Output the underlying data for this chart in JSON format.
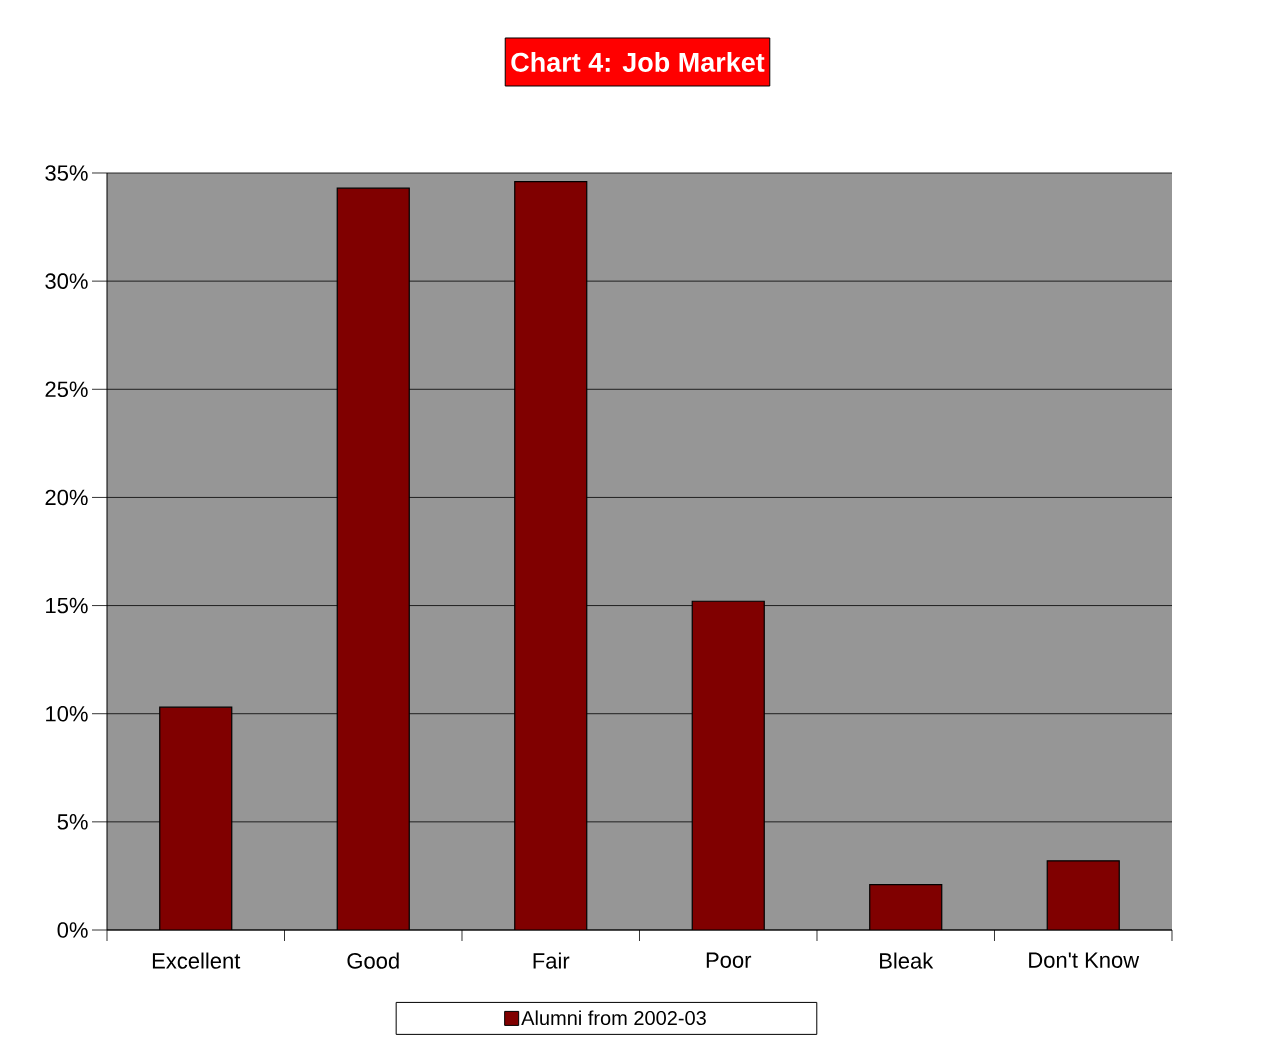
{
  "chart_data": {
    "type": "bar",
    "title": "Chart 4:  Job Market",
    "categories": [
      "Excellent",
      "Good",
      "Fair",
      "Poor",
      "Bleak",
      "Don't Know"
    ],
    "series": [
      {
        "name": "Alumni from 2002-03",
        "color": "#800000",
        "values": [
          10.3,
          34.3,
          34.6,
          15.2,
          2.1,
          3.2
        ]
      }
    ],
    "ylim": [
      0,
      35
    ],
    "yticks": [
      {
        "value": 0,
        "label": "0%"
      },
      {
        "value": 5,
        "label": "5%"
      },
      {
        "value": 10,
        "label": "10%"
      },
      {
        "value": 15,
        "label": "15%"
      },
      {
        "value": 20,
        "label": "20%"
      },
      {
        "value": 25,
        "label": "25%"
      },
      {
        "value": 30,
        "label": "30%"
      },
      {
        "value": 35,
        "label": "35%"
      }
    ],
    "grid": "y",
    "legend": "bottom"
  }
}
